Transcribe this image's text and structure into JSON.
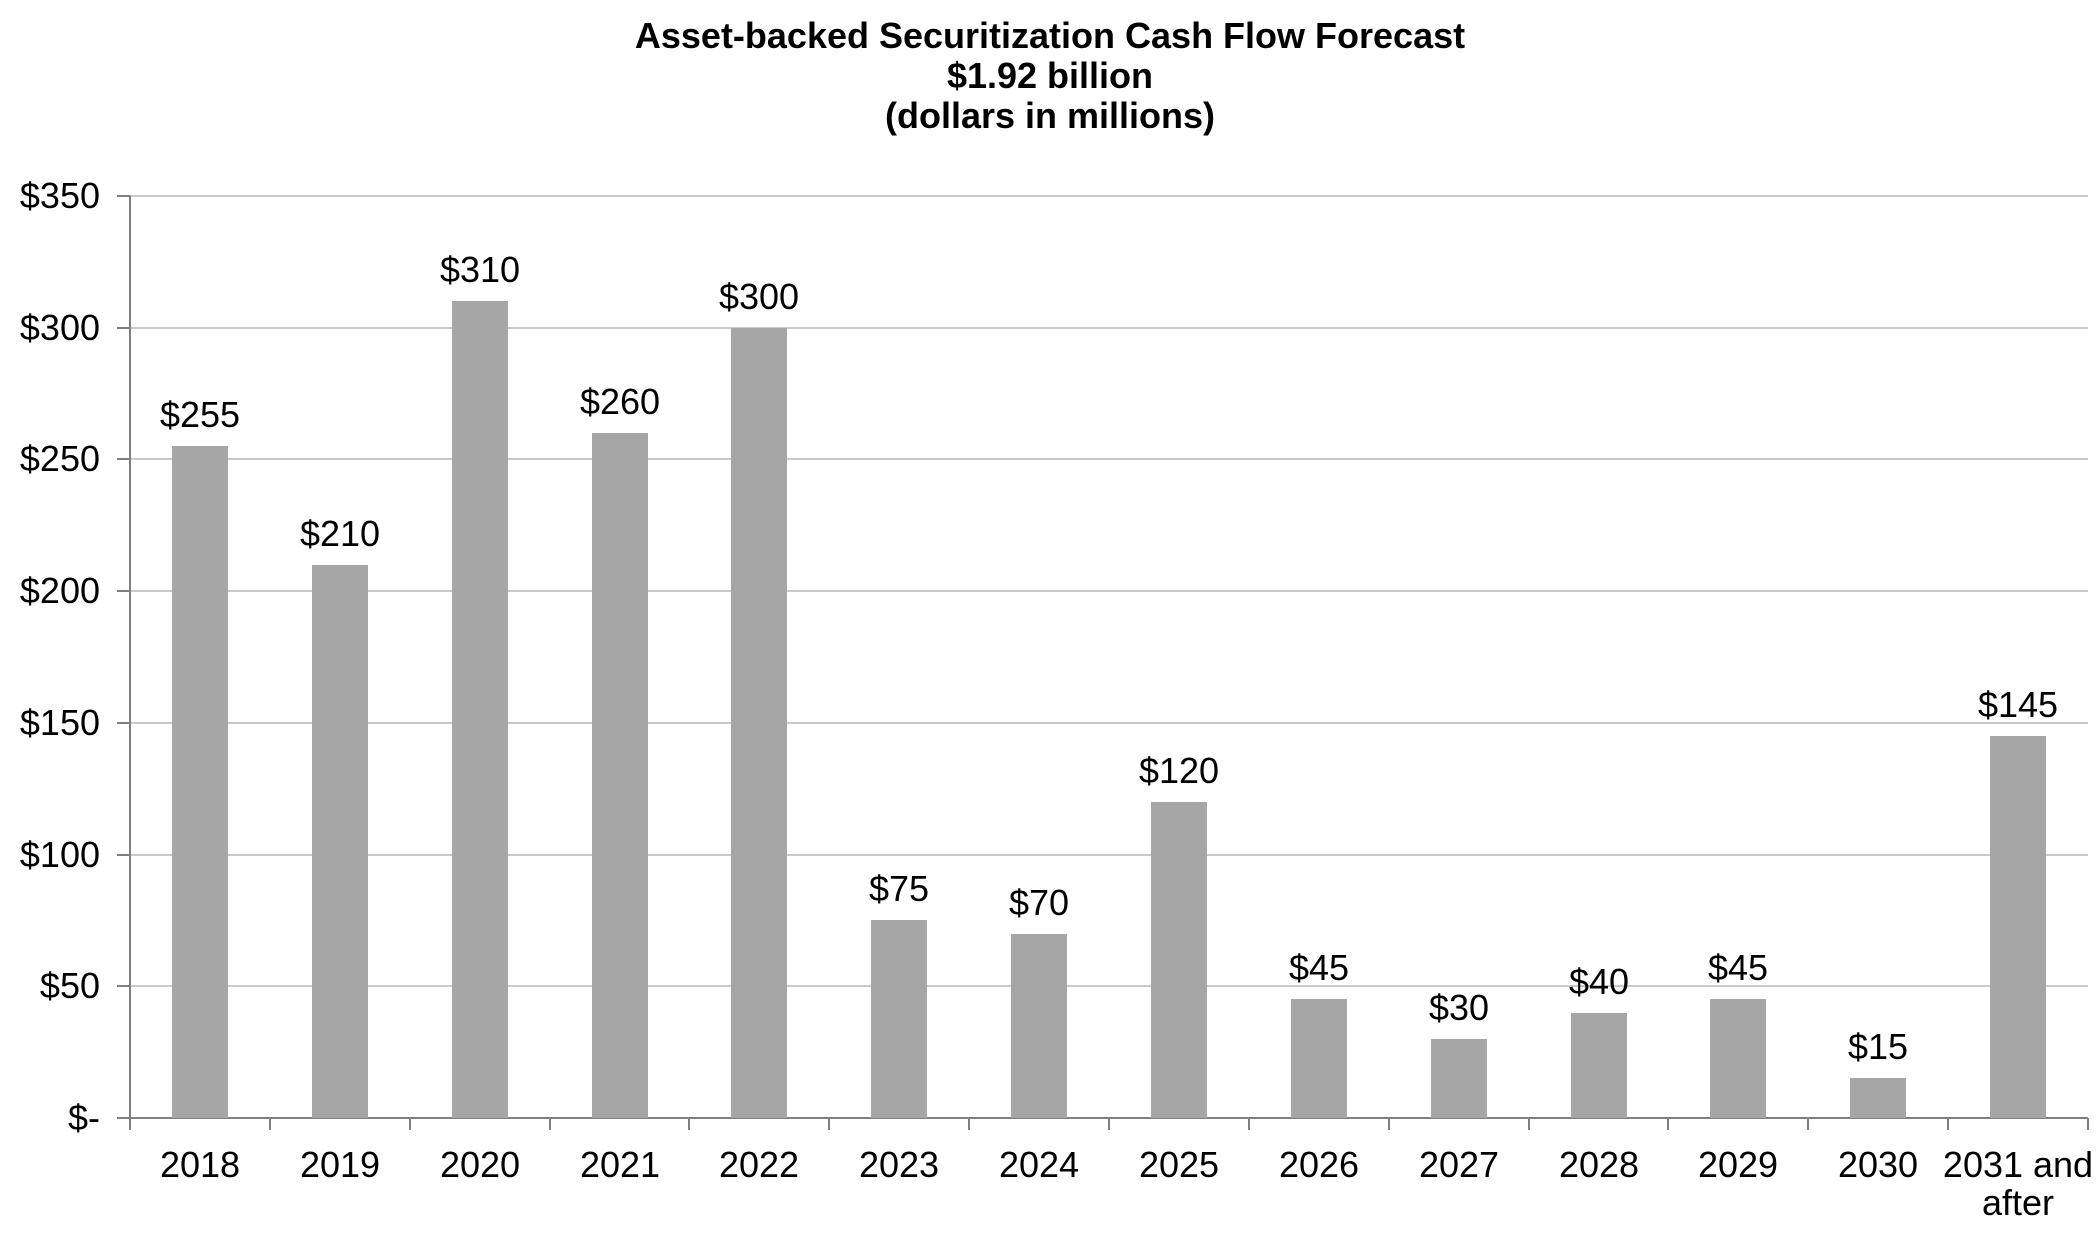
{
  "title": {
    "line1": "Asset-backed Securitization Cash Flow Forecast",
    "line2": "$1.92 billion",
    "line3": "(dollars in millions)"
  },
  "chart_data": {
    "type": "bar",
    "title": "Asset-backed Securitization Cash Flow Forecast",
    "subtitle": "$1.92 billion",
    "units_note": "(dollars in millions)",
    "categories": [
      "2018",
      "2019",
      "2020",
      "2021",
      "2022",
      "2023",
      "2024",
      "2025",
      "2026",
      "2027",
      "2028",
      "2029",
      "2030",
      "2031 and after"
    ],
    "values": [
      255,
      210,
      310,
      260,
      300,
      75,
      70,
      120,
      45,
      30,
      40,
      45,
      15,
      145
    ],
    "data_labels": [
      "$255",
      "$210",
      "$310",
      "$260",
      "$300",
      "$75",
      "$70",
      "$120",
      "$45",
      "$30",
      "$40",
      "$45",
      "$15",
      "$145"
    ],
    "y_tick_labels": [
      "$350",
      "$300",
      "$250",
      "$200",
      "$150",
      "$100",
      "$50",
      "$-"
    ],
    "y_tick_values": [
      350,
      300,
      250,
      200,
      150,
      100,
      50,
      0
    ],
    "ylim": [
      0,
      350
    ],
    "y_tick_step": 50,
    "xlabel": "",
    "ylabel": "",
    "grid": true,
    "legend": false,
    "colors": {
      "bar": "#A6A6A6",
      "gridline": "#C9C9C9",
      "axis": "#7F7F7F",
      "text": "#000000",
      "background": "#FFFFFF"
    }
  }
}
